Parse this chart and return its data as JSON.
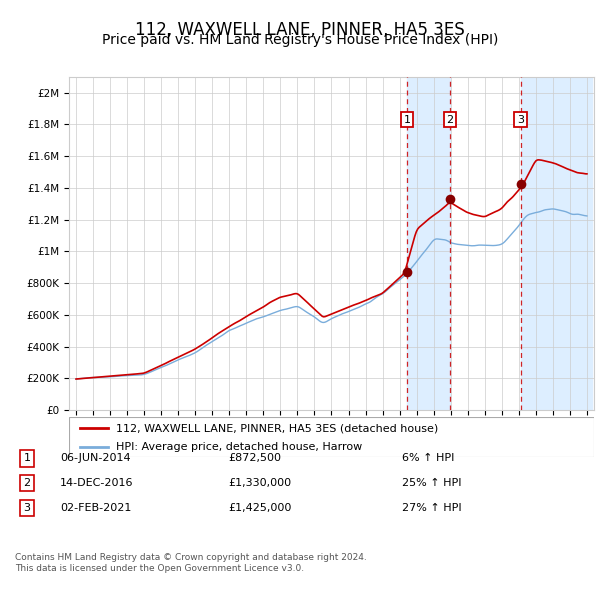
{
  "title": "112, WAXWELL LANE, PINNER, HA5 3ES",
  "subtitle": "Price paid vs. HM Land Registry's House Price Index (HPI)",
  "ylabel_ticks": [
    "£0",
    "£200K",
    "£400K",
    "£600K",
    "£800K",
    "£1M",
    "£1.2M",
    "£1.4M",
    "£1.6M",
    "£1.8M",
    "£2M"
  ],
  "ytick_values": [
    0,
    200000,
    400000,
    600000,
    800000,
    1000000,
    1200000,
    1400000,
    1600000,
    1800000,
    2000000
  ],
  "ylim": [
    0,
    2100000
  ],
  "red_line_color": "#cc0000",
  "blue_line_color": "#7aaddb",
  "background_shaded_color": "#ddeeff",
  "vline_color": "#cc0000",
  "purchases": [
    {
      "date_num": 2014.43,
      "price": 872500,
      "label": "1"
    },
    {
      "date_num": 2016.95,
      "price": 1330000,
      "label": "2"
    },
    {
      "date_num": 2021.09,
      "price": 1425000,
      "label": "3"
    }
  ],
  "legend_line1": "112, WAXWELL LANE, PINNER, HA5 3ES (detached house)",
  "legend_line2": "HPI: Average price, detached house, Harrow",
  "table_rows": [
    {
      "num": "1",
      "date": "06-JUN-2014",
      "price": "£872,500",
      "change": "6% ↑ HPI"
    },
    {
      "num": "2",
      "date": "14-DEC-2016",
      "price": "£1,330,000",
      "change": "25% ↑ HPI"
    },
    {
      "num": "3",
      "date": "02-FEB-2021",
      "price": "£1,425,000",
      "change": "27% ↑ HPI"
    }
  ],
  "footer": "Contains HM Land Registry data © Crown copyright and database right 2024.\nThis data is licensed under the Open Government Licence v3.0.",
  "grid_color": "#cccccc",
  "title_fontsize": 12,
  "subtitle_fontsize": 10,
  "axis_fontsize": 8,
  "chart_bg": "#f0f4f8"
}
